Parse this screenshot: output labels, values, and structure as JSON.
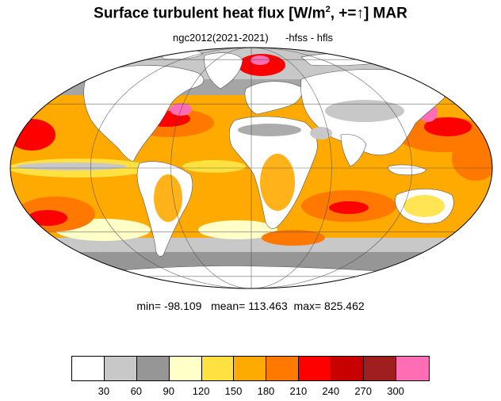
{
  "title": {
    "main": "Surface turbulent heat flux [W/m",
    "sup": "2",
    "suffix": ", +=↑]  MAR"
  },
  "subtitle": {
    "left": "ngc2012(2021-2021)",
    "right": "-hfss - hfls"
  },
  "stats": {
    "text": "min= -98.109   mean= 113.463  max= 825.462",
    "min": -98.109,
    "mean": 113.463,
    "max": 825.462
  },
  "colorbar": {
    "colors": [
      "#ffffff",
      "#c8c8c8",
      "#969696",
      "#ffffc8",
      "#ffe141",
      "#ffaa00",
      "#ff7800",
      "#ff0000",
      "#c80000",
      "#a01e1e",
      "#ff6eb4"
    ],
    "labels": [
      "30",
      "60",
      "90",
      "120",
      "150",
      "180",
      "210",
      "240",
      "270",
      "300"
    ]
  },
  "map": {
    "projection": "mollweide",
    "ocean_base_color": "#ffaa00",
    "land_color": "#ffffff",
    "graticule_color": "#444444"
  }
}
